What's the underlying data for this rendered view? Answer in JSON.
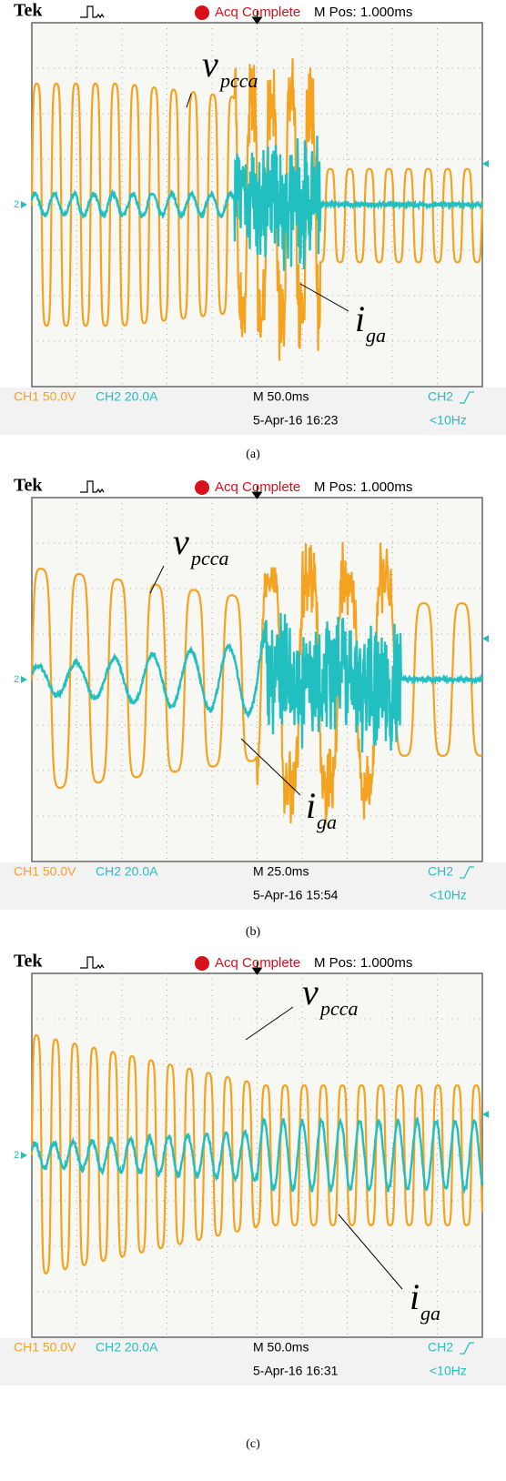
{
  "panels": [
    {
      "brand": "Tek",
      "status": "Acq Complete",
      "mpos": "M Pos: 1.000ms",
      "ground": "2",
      "ch1": "CH1  50.0V",
      "ch2": "CH2  20.0A",
      "timebase": "M 50.0ms",
      "date": "5-Apr-16 16:23",
      "trigger": "CH2",
      "freq": "<10Hz",
      "label_v": {
        "base": "v",
        "sub": "pcca"
      },
      "label_i": {
        "base": "i",
        "sub": "ga"
      },
      "caption": "(a)"
    },
    {
      "brand": "Tek",
      "status": "Acq Complete",
      "mpos": "M Pos: 1.000ms",
      "ground": "2",
      "ch1": "CH1  50.0V",
      "ch2": "CH2  20.0A",
      "timebase": "M 25.0ms",
      "date": "5-Apr-16 15:54",
      "trigger": "CH2",
      "freq": "<10Hz",
      "label_v": {
        "base": "v",
        "sub": "pcca"
      },
      "label_i": {
        "base": "i",
        "sub": "ga"
      },
      "caption": "(b)"
    },
    {
      "brand": "Tek",
      "status": "Acq Complete",
      "mpos": "M Pos: 1.000ms",
      "ground": "2",
      "ch1": "CH1  50.0V",
      "ch2": "CH2  20.0A",
      "timebase": "M 50.0ms",
      "date": "5-Apr-16 16:31",
      "trigger": "CH2",
      "freq": "<10Hz",
      "label_v": {
        "base": "v",
        "sub": "pcca"
      },
      "label_i": {
        "base": "i",
        "sub": "ga"
      },
      "caption": "(c)"
    }
  ]
}
